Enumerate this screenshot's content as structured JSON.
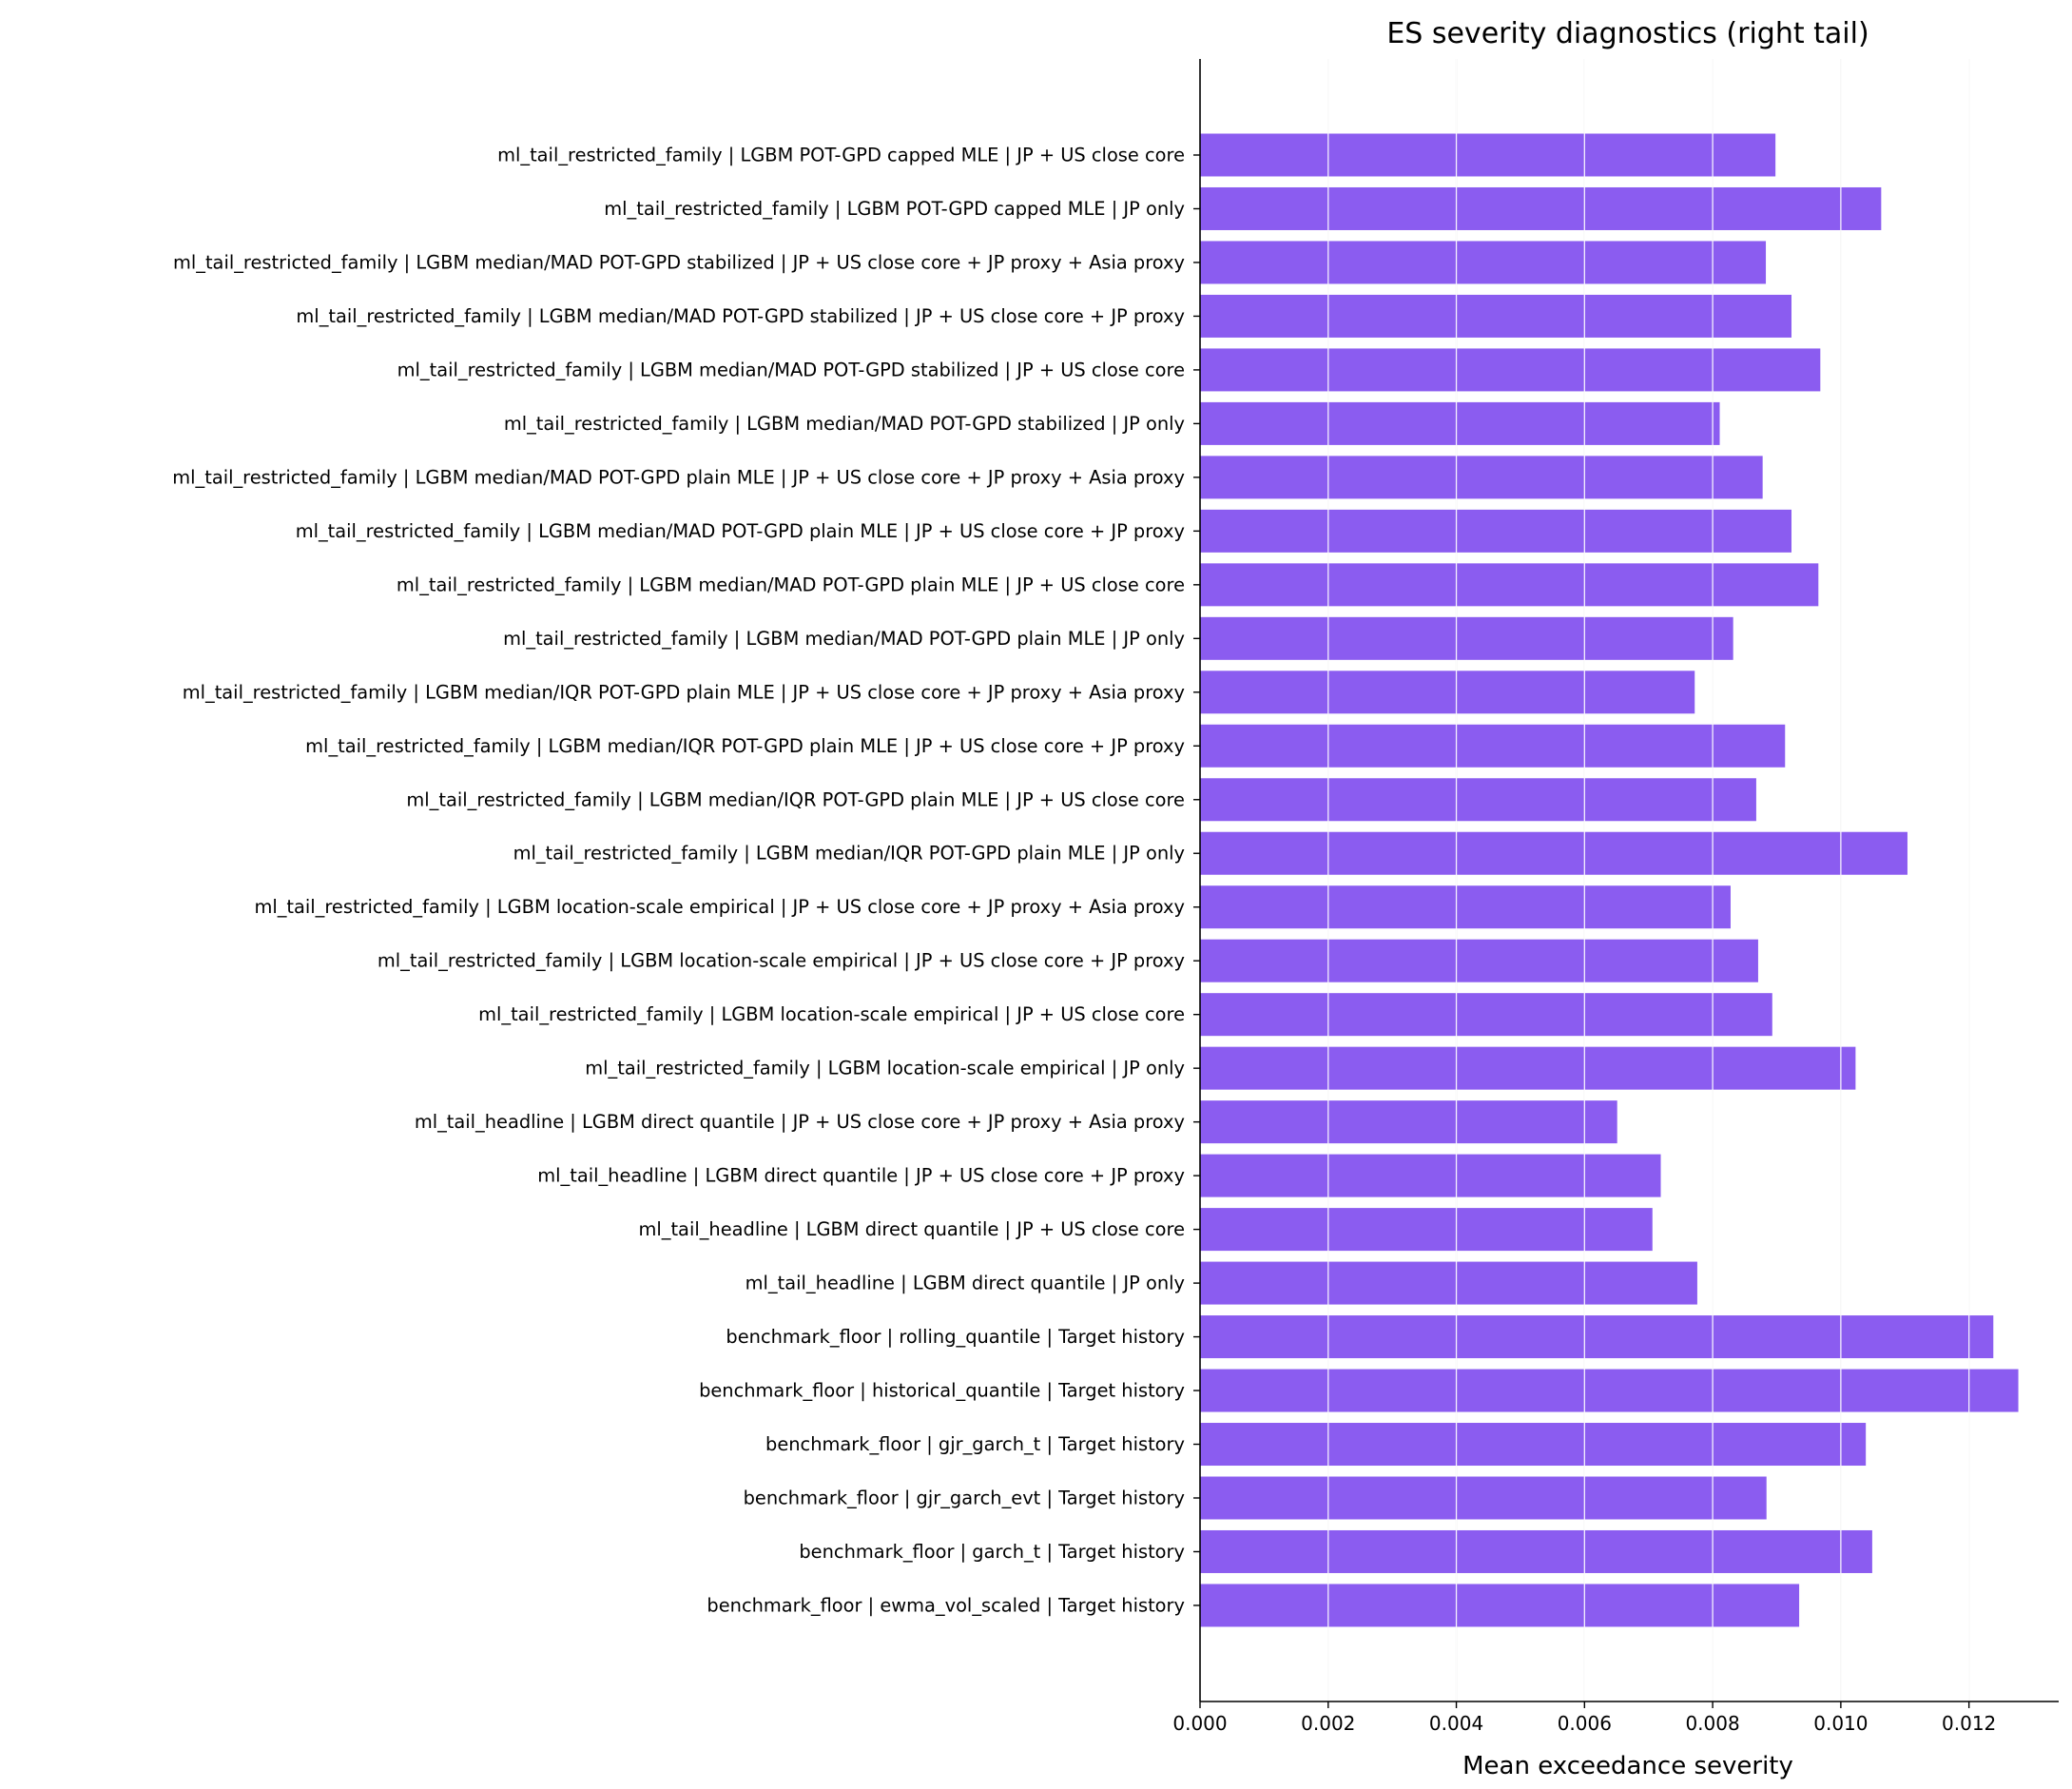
{
  "chart_data": {
    "type": "bar",
    "orientation": "horizontal",
    "title": "ES severity diagnostics (right tail)",
    "xlabel": "Mean exceedance severity",
    "ylabel": "",
    "xlim": [
      0,
      0.0134
    ],
    "xticks": [
      "0.000",
      "0.002",
      "0.004",
      "0.006",
      "0.008",
      "0.010",
      "0.012"
    ],
    "grid": "vertical",
    "bar_color": "#8b5cf0",
    "categories": [
      "ml_tail_restricted_family | LGBM POT-GPD capped MLE | JP + US close core",
      "ml_tail_restricted_family | LGBM POT-GPD capped MLE | JP only",
      "ml_tail_restricted_family | LGBM median/MAD POT-GPD stabilized | JP + US close core + JP proxy + Asia proxy",
      "ml_tail_restricted_family | LGBM median/MAD POT-GPD stabilized | JP + US close core + JP proxy",
      "ml_tail_restricted_family | LGBM median/MAD POT-GPD stabilized | JP + US close core",
      "ml_tail_restricted_family | LGBM median/MAD POT-GPD stabilized | JP only",
      "ml_tail_restricted_family | LGBM median/MAD POT-GPD plain MLE | JP + US close core + JP proxy + Asia proxy",
      "ml_tail_restricted_family | LGBM median/MAD POT-GPD plain MLE | JP + US close core + JP proxy",
      "ml_tail_restricted_family | LGBM median/MAD POT-GPD plain MLE | JP + US close core",
      "ml_tail_restricted_family | LGBM median/MAD POT-GPD plain MLE | JP only",
      "ml_tail_restricted_family | LGBM median/IQR POT-GPD plain MLE | JP + US close core + JP proxy + Asia proxy",
      "ml_tail_restricted_family | LGBM median/IQR POT-GPD plain MLE | JP + US close core + JP proxy",
      "ml_tail_restricted_family | LGBM median/IQR POT-GPD plain MLE | JP + US close core",
      "ml_tail_restricted_family | LGBM median/IQR POT-GPD plain MLE | JP only",
      "ml_tail_restricted_family | LGBM location-scale empirical | JP + US close core + JP proxy + Asia proxy",
      "ml_tail_restricted_family | LGBM location-scale empirical | JP + US close core + JP proxy",
      "ml_tail_restricted_family | LGBM location-scale empirical | JP + US close core",
      "ml_tail_restricted_family | LGBM location-scale empirical | JP only",
      "ml_tail_headline | LGBM direct quantile | JP + US close core + JP proxy + Asia proxy",
      "ml_tail_headline | LGBM direct quantile | JP + US close core + JP proxy",
      "ml_tail_headline | LGBM direct quantile | JP + US close core",
      "ml_tail_headline | LGBM direct quantile | JP only",
      "benchmark_floor | rolling_quantile | Target history",
      "benchmark_floor | historical_quantile | Target history",
      "benchmark_floor | gjr_garch_t | Target history",
      "benchmark_floor | gjr_garch_evt | Target history",
      "benchmark_floor | garch_t | Target history",
      "benchmark_floor | ewma_vol_scaled | Target history"
    ],
    "values": [
      0.00898,
      0.01063,
      0.00883,
      0.00923,
      0.00968,
      0.00811,
      0.00878,
      0.00923,
      0.00965,
      0.00832,
      0.00772,
      0.00913,
      0.00868,
      0.01104,
      0.00828,
      0.00871,
      0.00893,
      0.01023,
      0.00651,
      0.00719,
      0.00706,
      0.00776,
      0.01238,
      0.01277,
      0.01039,
      0.00884,
      0.01049,
      0.00935
    ]
  }
}
